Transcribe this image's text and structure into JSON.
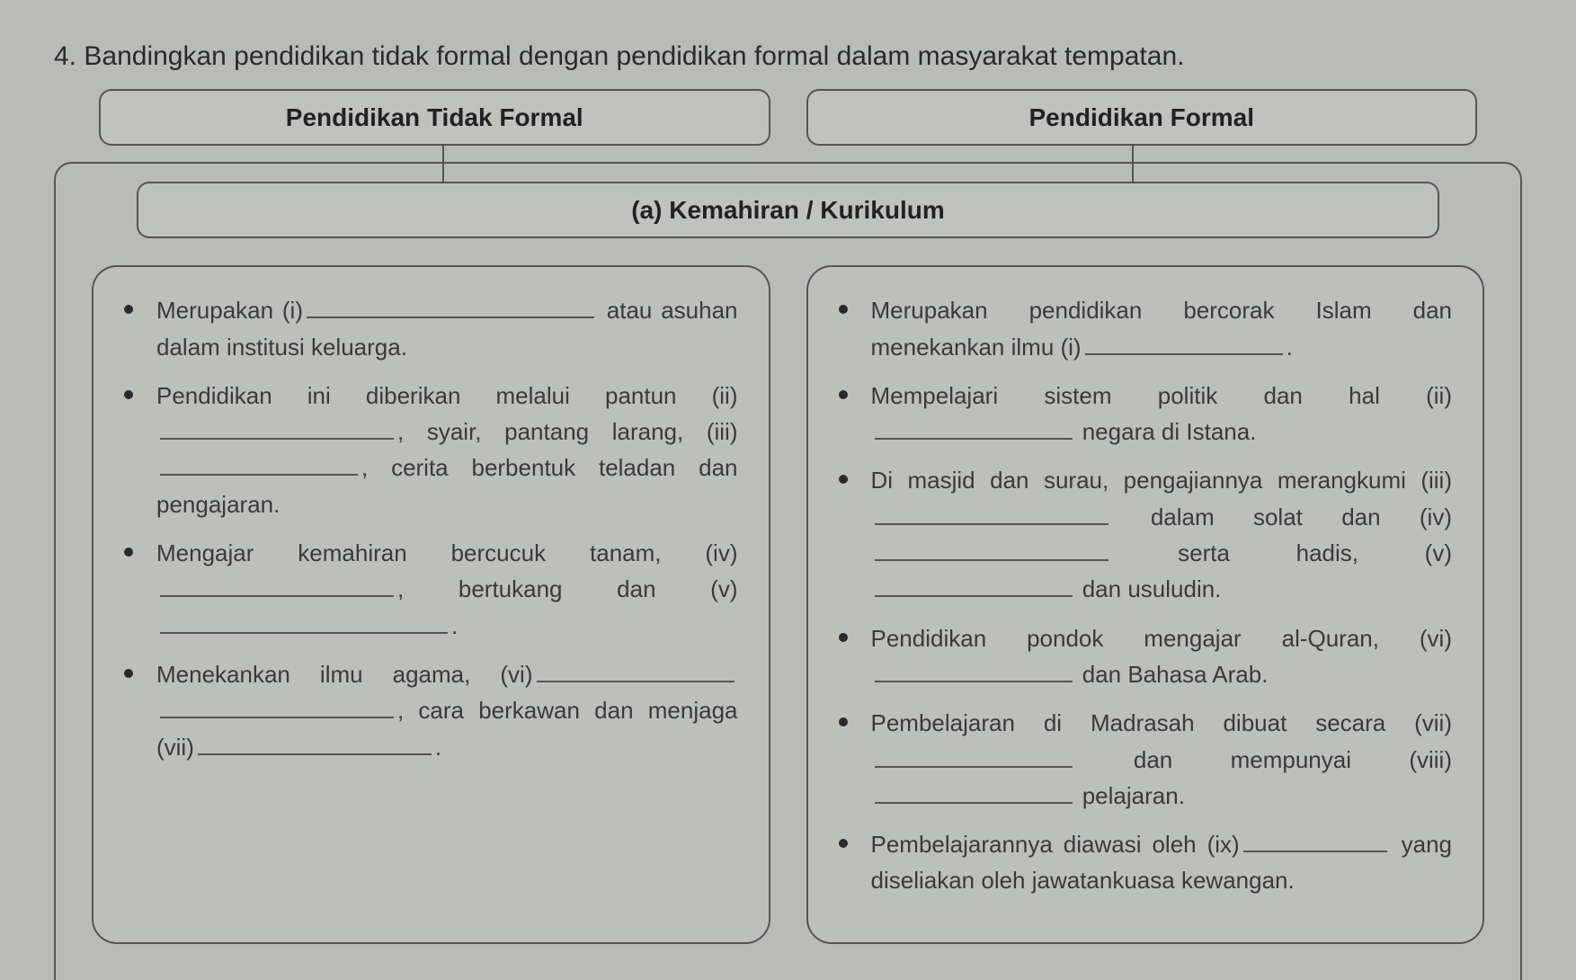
{
  "question_number": "4.",
  "question_text": "Bandingkan pendidikan tidak formal dengan pendidikan formal dalam masyarakat tempatan.",
  "column_left_title": "Pendidikan Tidak Formal",
  "column_right_title": "Pendidikan Formal",
  "section_label": "(a)  Kemahiran / Kurikulum",
  "left": {
    "b1_pre": "Merupakan (i)",
    "b1_post": " atau asuhan dalam institusi keluarga.",
    "b2_pre": "Pendidikan ini diberikan melalui pantun (ii)",
    "b2_mid1": ", syair, pantang larang, (iii)",
    "b2_post": ", cerita berbentuk teladan dan pengajaran.",
    "b3_pre": "Mengajar kemahiran bercucuk tanam, (iv)",
    "b3_mid": ", bertukang dan (v)",
    "b3_post": ".",
    "b4_pre": "Menekankan ilmu agama, (vi)",
    "b4_mid": ", cara berkawan dan menjaga (vii)",
    "b4_post": "."
  },
  "right": {
    "b1_pre": "Merupakan pendidikan bercorak Islam dan menekankan ilmu (i)",
    "b1_post": ".",
    "b2_pre": "Mempelajari sistem politik dan hal (ii)",
    "b2_post": " negara di Istana.",
    "b3_pre": "Di masjid dan surau, pengajiannya merangkumi (iii)",
    "b3_mid1": " dalam solat dan (iv)",
    "b3_mid2": " serta hadis, (v)",
    "b3_post": " dan usuludin.",
    "b4_pre": "Pendidikan pondok mengajar al-Quran, (vi)",
    "b4_post": " dan Bahasa Arab.",
    "b5_pre": "Pembelajaran di Madrasah dibuat secara (vii)",
    "b5_mid": " dan mempunyai (viii)",
    "b5_post": " pelajaran.",
    "b6_pre": "Pembelajarannya diawasi oleh (ix)",
    "b6_post": " yang diseliakan oleh jawatankuasa kewangan."
  },
  "style": {
    "background_color": "#b8bcb5",
    "text_color": "#3a3a3a",
    "border_color": "#555555",
    "pill_bg": "#c0c3bc",
    "box_bg": "#bcc0b9",
    "body_fontsize": 26,
    "question_fontsize": 30,
    "header_fontsize": 28,
    "border_radius_pill": 14,
    "border_radius_box": 28
  }
}
